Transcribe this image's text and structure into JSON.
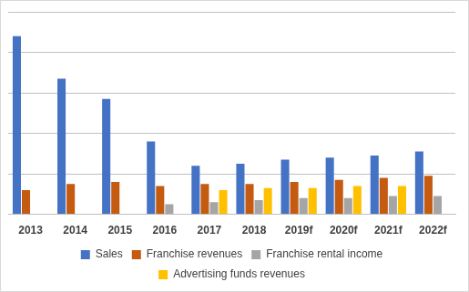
{
  "chart_data": {
    "type": "bar",
    "categories": [
      "2013",
      "2014",
      "2015",
      "2016",
      "2017",
      "2018",
      "2019f",
      "2020f",
      "2021f",
      "2022f"
    ],
    "series": [
      {
        "name": "Sales",
        "color": "#4472c4",
        "values": [
          4.4,
          3.35,
          2.85,
          1.8,
          1.2,
          1.25,
          1.35,
          1.4,
          1.45,
          1.55
        ]
      },
      {
        "name": "Franchise revenues",
        "color": "#c55a11",
        "values": [
          0.6,
          0.75,
          0.8,
          0.7,
          0.75,
          0.75,
          0.8,
          0.85,
          0.9,
          0.95
        ]
      },
      {
        "name": "Franchise rental income",
        "color": "#a5a5a5",
        "values": [
          null,
          null,
          null,
          0.25,
          0.3,
          0.35,
          0.4,
          0.4,
          0.45,
          0.45
        ]
      },
      {
        "name": "Advertising funds revenues",
        "color": "#ffc000",
        "values": [
          null,
          null,
          null,
          null,
          0.6,
          0.65,
          0.65,
          0.7,
          0.7,
          null
        ]
      }
    ],
    "ylim": [
      0,
      5
    ],
    "yticks": [
      0,
      1,
      2,
      3,
      4,
      5
    ],
    "grid": true,
    "legend": "bottom",
    "tick_labels": "x"
  }
}
